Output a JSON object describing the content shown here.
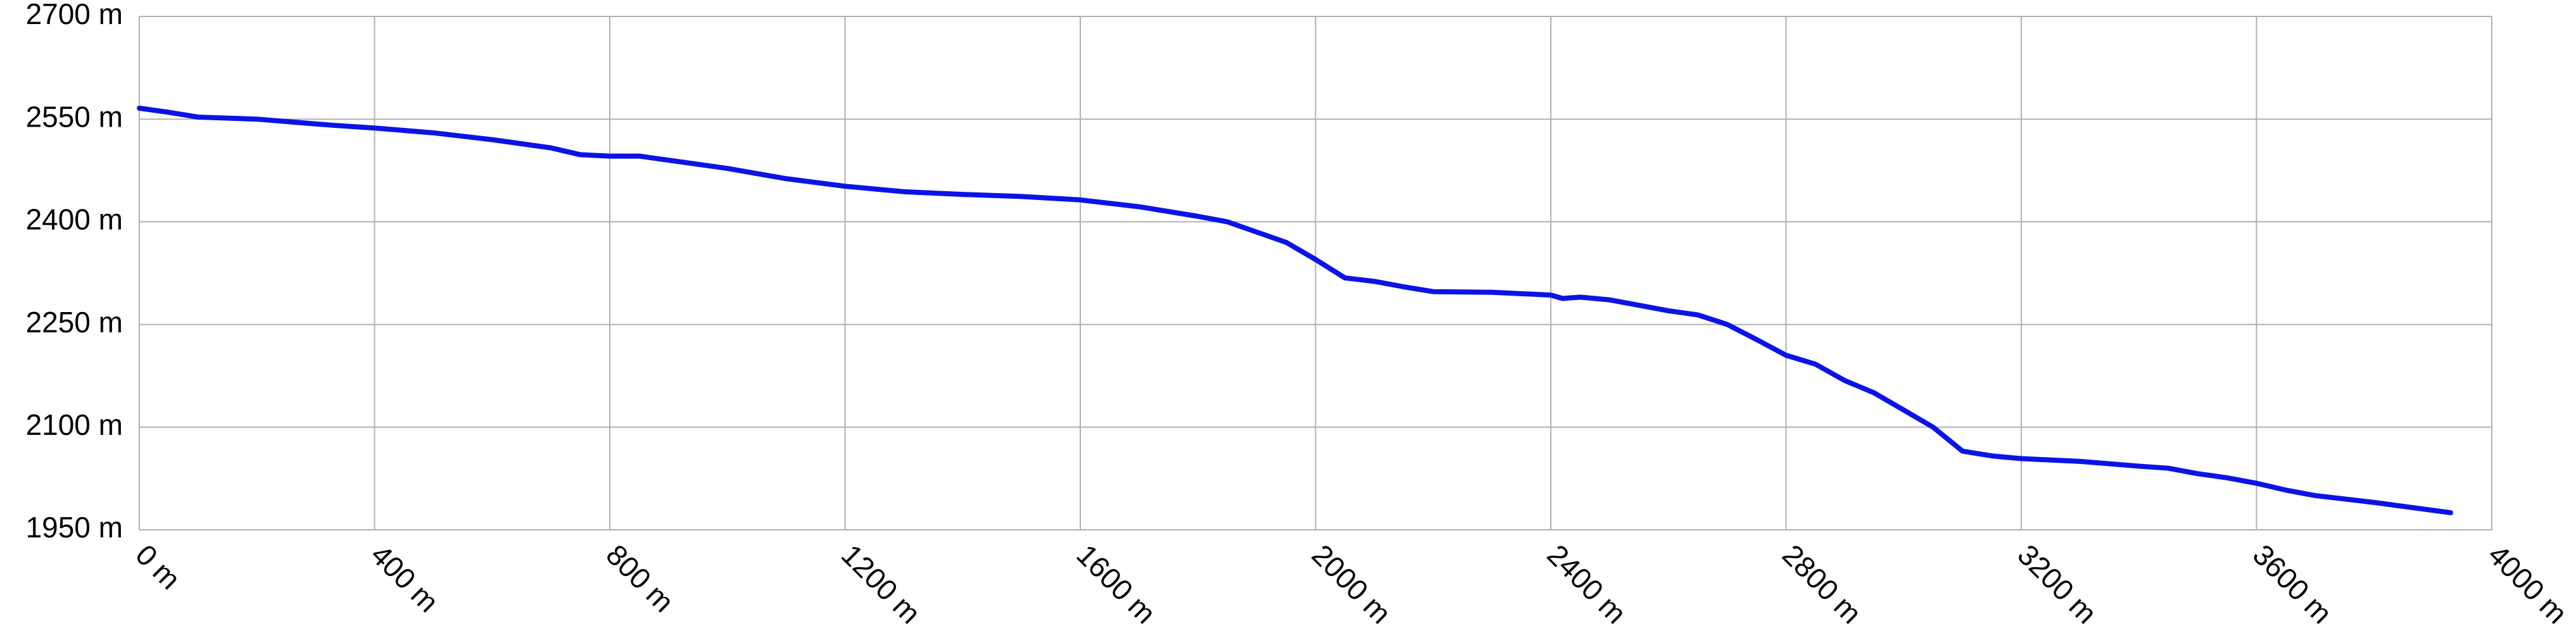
{
  "chart_data": {
    "type": "line",
    "x": [
      0,
      50,
      100,
      200,
      300,
      330,
      400,
      500,
      600,
      700,
      750,
      800,
      850,
      900,
      1000,
      1100,
      1200,
      1300,
      1400,
      1500,
      1600,
      1700,
      1800,
      1850,
      1900,
      1950,
      2000,
      2050,
      2100,
      2150,
      2200,
      2300,
      2400,
      2420,
      2450,
      2500,
      2600,
      2650,
      2700,
      2750,
      2800,
      2850,
      2900,
      2950,
      3000,
      3050,
      3100,
      3150,
      3200,
      3300,
      3400,
      3450,
      3500,
      3550,
      3600,
      3650,
      3700,
      3800,
      3930
    ],
    "series": [
      {
        "color": "#0a14e6",
        "values": [
          2566,
          2560,
          2553,
          2550,
          2543,
          2541,
          2537,
          2530,
          2520,
          2508,
          2498,
          2496,
          2496,
          2490,
          2478,
          2463,
          2452,
          2444,
          2440,
          2437,
          2432,
          2422,
          2408,
          2400,
          2385,
          2370,
          2345,
          2318,
          2313,
          2305,
          2298,
          2297,
          2293,
          2288,
          2290,
          2286,
          2270,
          2264,
          2250,
          2228,
          2205,
          2192,
          2168,
          2150,
          2125,
          2100,
          2065,
          2058,
          2054,
          2050,
          2043,
          2040,
          2032,
          2026,
          2018,
          2008,
          2000,
          1990,
          1975
        ]
      }
    ],
    "xlim": [
      0,
      4000
    ],
    "xticks": [
      {
        "value": 0,
        "label": "0 m"
      },
      {
        "value": 400,
        "label": "400 m"
      },
      {
        "value": 800,
        "label": "800 m"
      },
      {
        "value": 1200,
        "label": "1200 m"
      },
      {
        "value": 1600,
        "label": "1600 m"
      },
      {
        "value": 2000,
        "label": "2000 m"
      },
      {
        "value": 2400,
        "label": "2400 m"
      },
      {
        "value": 2800,
        "label": "2800 m"
      },
      {
        "value": 3200,
        "label": "3200 m"
      },
      {
        "value": 3600,
        "label": "3600 m"
      },
      {
        "value": 4000,
        "label": "4000 m"
      }
    ],
    "ylim": [
      1950,
      2700
    ],
    "yticks": [
      {
        "value": 1950,
        "label": "1950 m"
      },
      {
        "value": 2100,
        "label": "2100 m"
      },
      {
        "value": 2250,
        "label": "2250 m"
      },
      {
        "value": 2400,
        "label": "2400 m"
      },
      {
        "value": 2550,
        "label": "2550 m"
      },
      {
        "value": 2700,
        "label": "2700 m"
      }
    ],
    "grid": true
  }
}
